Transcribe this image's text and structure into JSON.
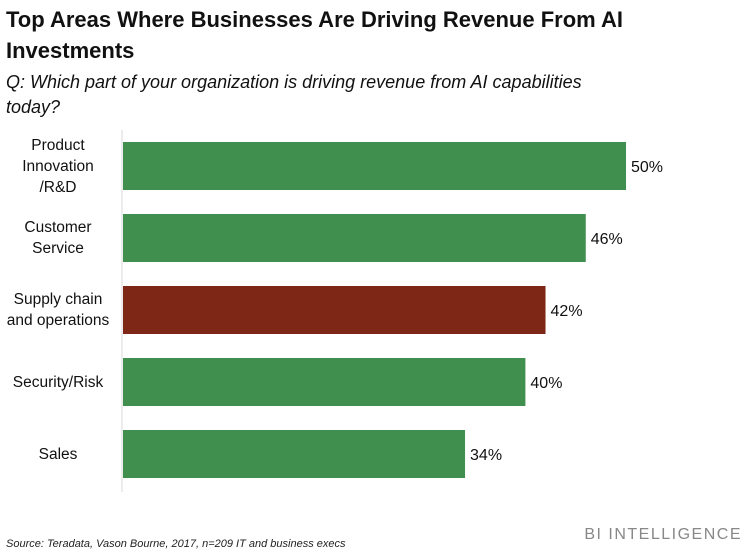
{
  "chart_data": {
    "type": "bar",
    "orientation": "horizontal",
    "title": "Top Areas Where Businesses Are Driving Revenue From AI Investments",
    "subtitle": "Q: Which part of your organization is driving revenue from AI capabilities today?",
    "categories": [
      "Product Innovation /R&D",
      "Customer Service",
      "Supply chain and operations",
      "Security/Risk",
      "Sales"
    ],
    "values": [
      50,
      46,
      42,
      40,
      34
    ],
    "data_labels": [
      "50%",
      "46%",
      "42%",
      "40%",
      "34%"
    ],
    "colors": [
      "#418f4f",
      "#418f4f",
      "#7f2716",
      "#418f4f",
      "#418f4f"
    ],
    "xlim": [
      0,
      50
    ],
    "grid": false,
    "source": "Source: Teradata, Vason Bourne, 2017, n=209 IT and business execs",
    "brand": "BI INTELLIGENCE"
  }
}
